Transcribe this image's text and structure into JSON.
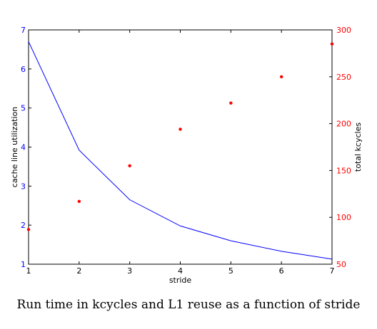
{
  "chart_data": {
    "type": "line",
    "caption": "Run time in kcycles and L1 reuse as a function of stride",
    "xlabel": "stride",
    "xlim": [
      1,
      7
    ],
    "xticks": [
      1,
      2,
      3,
      4,
      5,
      6,
      7
    ],
    "ylabel_left": "cache line utilization",
    "ylim_left": [
      1,
      7
    ],
    "yticks_left": [
      1,
      2,
      3,
      4,
      5,
      6,
      7
    ],
    "ylabel_right": "total kcycles",
    "ylim_right": [
      50,
      300
    ],
    "yticks_right": [
      50,
      100,
      150,
      200,
      250,
      300
    ],
    "grid": false,
    "series": [
      {
        "axis": "left",
        "style": "line",
        "color": "#0000ff",
        "x": [
          1,
          2,
          3,
          4,
          5,
          6,
          7
        ],
        "values": [
          6.7,
          3.92,
          2.65,
          1.98,
          1.6,
          1.33,
          1.13
        ]
      },
      {
        "axis": "right",
        "style": "points",
        "color": "#ff0000",
        "x": [
          1,
          2,
          3,
          4,
          5,
          6,
          7
        ],
        "values": [
          87,
          117,
          155,
          194,
          222,
          250,
          285
        ]
      }
    ]
  }
}
